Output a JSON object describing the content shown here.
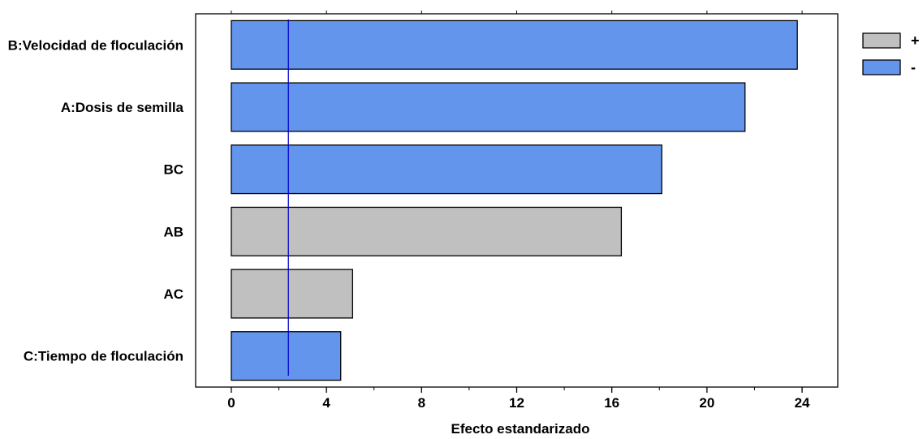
{
  "chart_data": {
    "type": "bar",
    "orientation": "horizontal",
    "categories": [
      "B:Velocidad de floculación",
      "A:Dosis de semilla",
      "BC",
      "AB",
      "AC",
      "C:Tiempo de floculación"
    ],
    "values": [
      23.8,
      21.6,
      18.1,
      16.4,
      5.1,
      4.6
    ],
    "signs": [
      "-",
      "-",
      "-",
      "+",
      "+",
      "-"
    ],
    "xlabel": "Efecto estandarizado",
    "ylabel": "",
    "xlim": [
      -1.5,
      25.5
    ],
    "xticks": [
      0,
      4,
      8,
      12,
      16,
      20,
      24
    ],
    "reference_line": 2.4,
    "legend": {
      "position": "top-right",
      "entries": [
        {
          "label": "+",
          "color": "#c0c0c0"
        },
        {
          "label": "-",
          "color": "#6495ed"
        }
      ]
    },
    "colors": {
      "+": "#c0c0c0",
      "-": "#6495ed",
      "reference_line": "#0000cd"
    },
    "grid": false
  }
}
